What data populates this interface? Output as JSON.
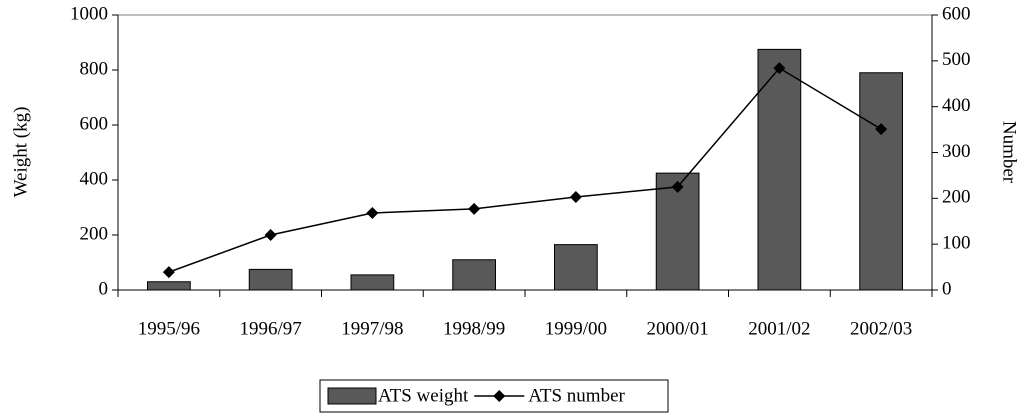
{
  "chart_data": {
    "type": "bar",
    "categories": [
      "1995/96",
      "1996/97",
      "1997/98",
      "1998/99",
      "1999/00",
      "2000/01",
      "2001/02",
      "2002/03"
    ],
    "series": [
      {
        "name": "ATS weight",
        "type": "bar",
        "color": "#595959",
        "values": [
          30,
          75,
          55,
          110,
          165,
          425,
          875,
          790
        ]
      },
      {
        "name": "ATS number",
        "type": "line",
        "axis": "y2",
        "color": "#000000",
        "values": [
          39,
          120,
          168,
          177,
          203,
          225,
          484,
          351
        ]
      }
    ],
    "ylabel": "Weight (kg)",
    "y2label": "Number",
    "ylim": [
      0,
      1000
    ],
    "yticks": [
      0,
      200,
      400,
      600,
      800,
      1000
    ],
    "y2lim": [
      0,
      600
    ],
    "y2ticks": [
      0,
      100,
      200,
      300,
      400,
      500,
      600
    ],
    "legend": "bottom"
  }
}
